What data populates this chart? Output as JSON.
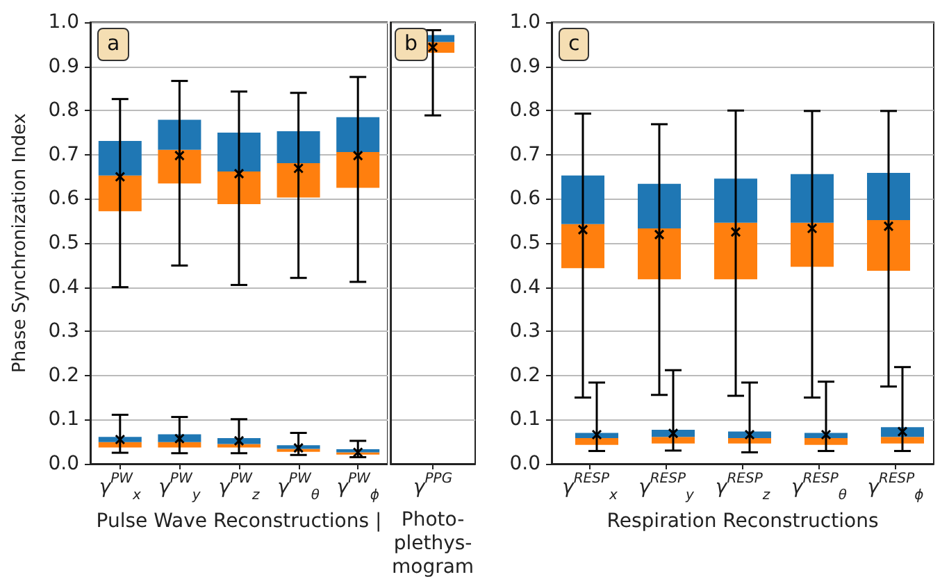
{
  "chart_data": [
    {
      "type": "box",
      "annotations": [
        "a"
      ],
      "ylabel": "Phase Synchronization Index",
      "xlabel": "Pulse Wave Reconstructions |",
      "categories": [
        "γ$^{PW}$$_{x}$",
        "γ$^{PW}$$_{y}$",
        "γ$^{PW}$$_{z}$",
        "γ$^{PW}$$_{θ}$",
        "γ$^{PW}$$_{ϕ}$"
      ],
      "colors": [
        "#ff7f0e",
        "#1f77b4"
      ],
      "ylim": [
        0,
        1
      ],
      "yticks": [
        {
          "value": 0,
          "label": "0.0"
        },
        {
          "value": 0.1,
          "label": "0.1"
        },
        {
          "value": 0.2,
          "label": "0.2"
        },
        {
          "value": 0.3,
          "label": "0.3"
        },
        {
          "value": 0.4,
          "label": "0.4"
        },
        {
          "value": 0.5,
          "label": "0.5"
        },
        {
          "value": 0.6,
          "label": "0.6"
        },
        {
          "value": 0.7,
          "label": "0.7"
        },
        {
          "value": 0.8,
          "label": "0.8"
        },
        {
          "value": 0.9,
          "label": "0.9"
        },
        {
          "value": 1,
          "label": "1.0"
        }
      ],
      "grid": "y",
      "series": [
        {
          "boxes": [
            {
              "low": 0.4,
              "q1": 0.572,
              "median": 0.653,
              "q3": 0.731,
              "high": 0.826,
              "mean": 0.65
            },
            {
              "low": 0.449,
              "q1": 0.635,
              "median": 0.711,
              "q3": 0.779,
              "high": 0.867,
              "mean": 0.698
            },
            {
              "low": 0.405,
              "q1": 0.588,
              "median": 0.662,
              "q3": 0.75,
              "high": 0.843,
              "mean": 0.657
            },
            {
              "low": 0.421,
              "q1": 0.603,
              "median": 0.681,
              "q3": 0.753,
              "high": 0.84,
              "mean": 0.669
            },
            {
              "low": 0.412,
              "q1": 0.625,
              "median": 0.706,
              "q3": 0.785,
              "high": 0.876,
              "mean": 0.698
            }
          ]
        },
        {
          "boxes": [
            {
              "low": 0.025,
              "q1": 0.037,
              "median": 0.049,
              "q3": 0.061,
              "high": 0.111,
              "mean": 0.055
            },
            {
              "low": 0.024,
              "q1": 0.037,
              "median": 0.049,
              "q3": 0.067,
              "high": 0.106,
              "mean": 0.057
            },
            {
              "low": 0.024,
              "q1": 0.037,
              "median": 0.045,
              "q3": 0.058,
              "high": 0.101,
              "mean": 0.052
            },
            {
              "low": 0.02,
              "q1": 0.027,
              "median": 0.034,
              "q3": 0.042,
              "high": 0.07,
              "mean": 0.036
            },
            {
              "low": 0.015,
              "q1": 0.021,
              "median": 0.026,
              "q3": 0.033,
              "high": 0.052,
              "mean": 0.026
            }
          ]
        }
      ]
    },
    {
      "type": "box",
      "annotations": [
        "b"
      ],
      "xlabel": "Photo-\nplethys-\nmogram",
      "categories": [
        "γ$^{PPG}$"
      ],
      "colors": [
        "#ff7f0e",
        "#1f77b4"
      ],
      "ylim": [
        0,
        1
      ],
      "yticks": [
        0,
        0.1,
        0.2,
        0.3,
        0.4,
        0.5,
        0.6,
        0.7,
        0.8,
        0.9,
        1
      ],
      "tick_labels": "x",
      "grid": "y",
      "series": [
        {
          "boxes": [
            {
              "low": 0.789,
              "q1": 0.931,
              "median": 0.955,
              "q3": 0.971,
              "high": 0.982,
              "mean": 0.943
            }
          ]
        }
      ]
    },
    {
      "type": "box",
      "annotations": [
        "c"
      ],
      "xlabel": "Respiration Reconstructions",
      "categories": [
        "γ$^{RESP}$$_{x}$",
        "γ$^{RESP}$$_{y}$",
        "γ$^{RESP}$$_{z}$",
        "γ$^{RESP}$$_{θ}$",
        "γ$^{RESP}$$_{ϕ}$"
      ],
      "colors": [
        "#ff7f0e",
        "#1f77b4"
      ],
      "ylim": [
        0,
        1
      ],
      "yticks": [
        {
          "value": 0,
          "label": "0.0"
        },
        {
          "value": 0.1,
          "label": "0.1"
        },
        {
          "value": 0.2,
          "label": "0.2"
        },
        {
          "value": 0.3,
          "label": "0.3"
        },
        {
          "value": 0.4,
          "label": "0.4"
        },
        {
          "value": 0.5,
          "label": "0.5"
        },
        {
          "value": 0.6,
          "label": "0.6"
        },
        {
          "value": 0.7,
          "label": "0.7"
        },
        {
          "value": 0.8,
          "label": "0.8"
        },
        {
          "value": 0.9,
          "label": "0.9"
        },
        {
          "value": 1,
          "label": "1.0"
        }
      ],
      "grid": "y",
      "series": [
        {
          "boxes": [
            {
              "low": 0.15,
              "q1": 0.443,
              "median": 0.543,
              "q3": 0.653,
              "high": 0.793,
              "mean": 0.53
            },
            {
              "low": 0.156,
              "q1": 0.418,
              "median": 0.533,
              "q3": 0.634,
              "high": 0.769,
              "mean": 0.519
            },
            {
              "low": 0.154,
              "q1": 0.418,
              "median": 0.546,
              "q3": 0.646,
              "high": 0.8,
              "mean": 0.525
            },
            {
              "low": 0.15,
              "q1": 0.446,
              "median": 0.546,
              "q3": 0.656,
              "high": 0.799,
              "mean": 0.533
            },
            {
              "low": 0.175,
              "q1": 0.437,
              "median": 0.552,
              "q3": 0.659,
              "high": 0.799,
              "mean": 0.538
            }
          ]
        },
        {
          "boxes": [
            {
              "low": 0.029,
              "q1": 0.043,
              "median": 0.058,
              "q3": 0.07,
              "high": 0.184,
              "mean": 0.066
            },
            {
              "low": 0.03,
              "q1": 0.046,
              "median": 0.061,
              "q3": 0.077,
              "high": 0.212,
              "mean": 0.069
            },
            {
              "low": 0.026,
              "q1": 0.046,
              "median": 0.058,
              "q3": 0.073,
              "high": 0.184,
              "mean": 0.066
            },
            {
              "low": 0.029,
              "q1": 0.043,
              "median": 0.058,
              "q3": 0.07,
              "high": 0.186,
              "mean": 0.066
            },
            {
              "low": 0.029,
              "q1": 0.046,
              "median": 0.061,
              "q3": 0.083,
              "high": 0.219,
              "mean": 0.073
            }
          ]
        }
      ]
    }
  ]
}
